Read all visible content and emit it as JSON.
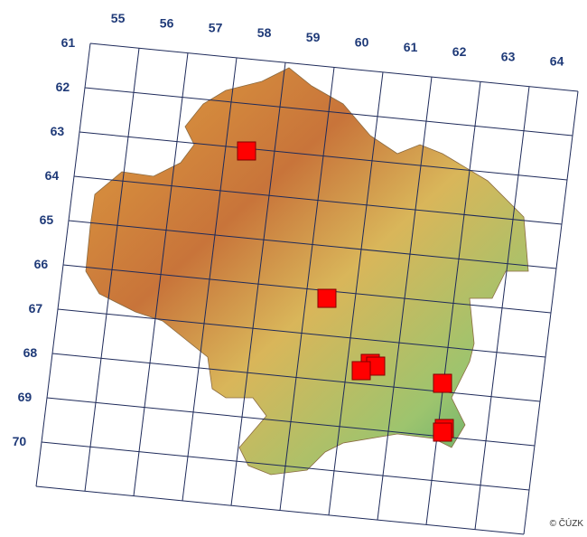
{
  "column_labels": [
    "55",
    "56",
    "57",
    "58",
    "59",
    "60",
    "61",
    "62",
    "63",
    "64"
  ],
  "row_labels": [
    "61",
    "62",
    "63",
    "64",
    "65",
    "66",
    "67",
    "68",
    "69",
    "70"
  ],
  "copyright": "© ČÚZK"
}
